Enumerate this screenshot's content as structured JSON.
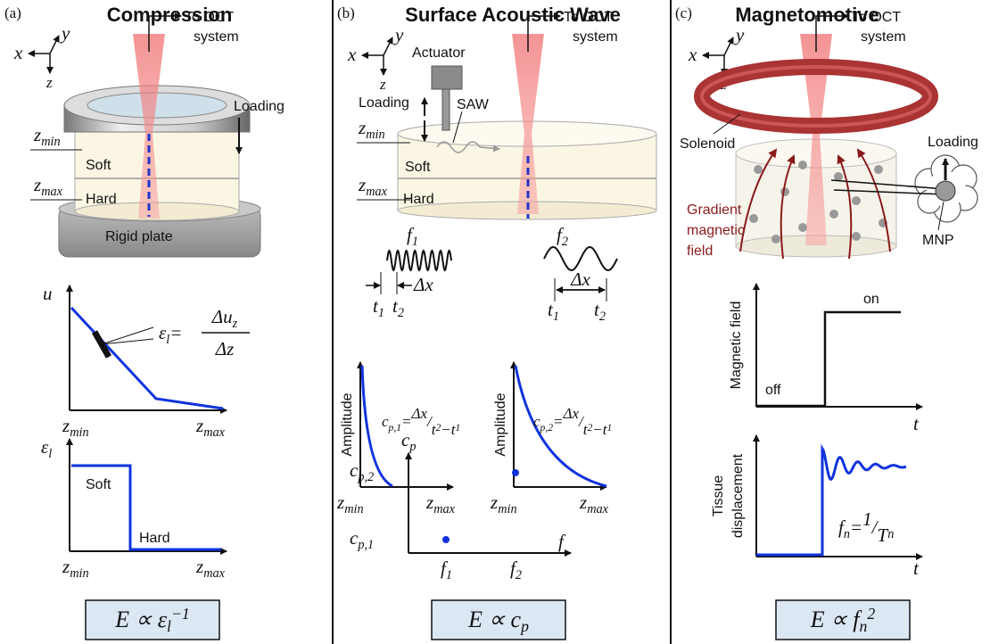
{
  "panels": [
    {
      "label": "(a)",
      "title": "Compression"
    },
    {
      "label": "(b)",
      "title": "Surface Acoustic Wave"
    },
    {
      "label": "(c)",
      "title": "Magnetomotive"
    }
  ],
  "axes": {
    "x": "x",
    "y": "y",
    "z": "z"
  },
  "oct": [
    "To OCT",
    "system"
  ],
  "loading": "Loading",
  "soft": "Soft",
  "hard": "Hard",
  "z_min": {
    "base": "z",
    "sub": "min"
  },
  "z_max": {
    "base": "z",
    "sub": "max"
  },
  "compression": {
    "rigid_plate": "Rigid plate",
    "u": "u",
    "strain": {
      "base": "ε",
      "sub": "l"
    },
    "eq": "=",
    "du": {
      "base": "Δu",
      "sub": "z"
    },
    "dz": "Δz",
    "modulus": {
      "lhs": "E ∝ ",
      "base": "ε",
      "sub": "l",
      "sup": "−1"
    }
  },
  "saw": {
    "actuator": "Actuator",
    "saw": "SAW",
    "f1": {
      "base": "f",
      "sub": "1"
    },
    "f2": {
      "base": "f",
      "sub": "2"
    },
    "dx": "Δx",
    "t1": {
      "base": "t",
      "sub": "1"
    },
    "t2": {
      "base": "t",
      "sub": "2"
    },
    "amplitude": "Amplitude",
    "cp": {
      "base": "c",
      "sub": "p"
    },
    "cp1": {
      "base": "c",
      "sub": "p,1"
    },
    "cp2": {
      "base": "c",
      "sub": "p,2"
    },
    "eq": "=",
    "slash": "/",
    "minus": "−",
    "f": "f",
    "modulus": {
      "lhs": "E ∝ ",
      "base": "c",
      "sub": "p"
    }
  },
  "magnetomotive": {
    "solenoid": "Solenoid",
    "mnp": "MNP",
    "gradient": [
      "Gradient",
      "magnetic",
      "field"
    ],
    "magnetic_field": "Magnetic field",
    "on": "on",
    "off": "off",
    "t": "t",
    "tissue": [
      "Tissue",
      "displacement"
    ],
    "fn": {
      "base": "f",
      "sub": "n"
    },
    "eq": "=",
    "one": "1",
    "slash": "/",
    "tn": {
      "base": "T",
      "sub": "n"
    },
    "modulus": {
      "lhs": "E ∝ ",
      "base": "f",
      "sub": "n",
      "sup": "2"
    }
  }
}
